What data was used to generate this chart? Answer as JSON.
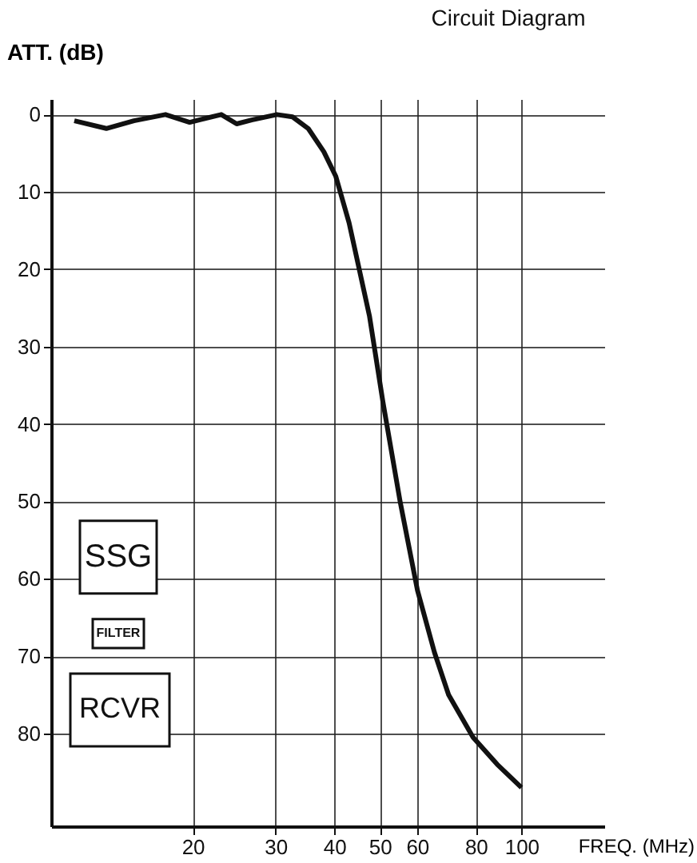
{
  "chart_data": {
    "type": "line",
    "xlabel": "FREQ. (MHz)",
    "ylabel": "ATT. (dB)",
    "annotations": [
      "Circuit Diagram",
      "SSG",
      "FILTER",
      "RCVR"
    ],
    "series": [
      {
        "color": "#111111",
        "x": [
          11.2,
          13.1,
          15.0,
          17.5,
          19.7,
          23.0,
          24.8,
          26.7,
          30.2,
          32.6,
          35.2,
          38.0,
          40.3,
          43.0,
          47.5,
          50.7,
          55.2,
          60.1,
          65.3,
          70.0,
          78.9,
          88.8,
          100
        ],
        "values": [
          0.8,
          1.8,
          0.8,
          0,
          1,
          0,
          1.2,
          0.7,
          0,
          0.3,
          1.8,
          4.8,
          8,
          14,
          26,
          37,
          50,
          61.5,
          69.5,
          75,
          80.5,
          84,
          87
        ]
      }
    ],
    "log": "x",
    "xlim": [
      10,
      150
    ],
    "xticks": [
      20,
      30,
      40,
      50,
      60,
      80,
      100
    ],
    "ylim": [
      92,
      -2
    ],
    "yticks": [
      0,
      10,
      20,
      30,
      40,
      50,
      60,
      70,
      80
    ],
    "grid": true,
    "marker": "none",
    "line_style": "solid"
  }
}
